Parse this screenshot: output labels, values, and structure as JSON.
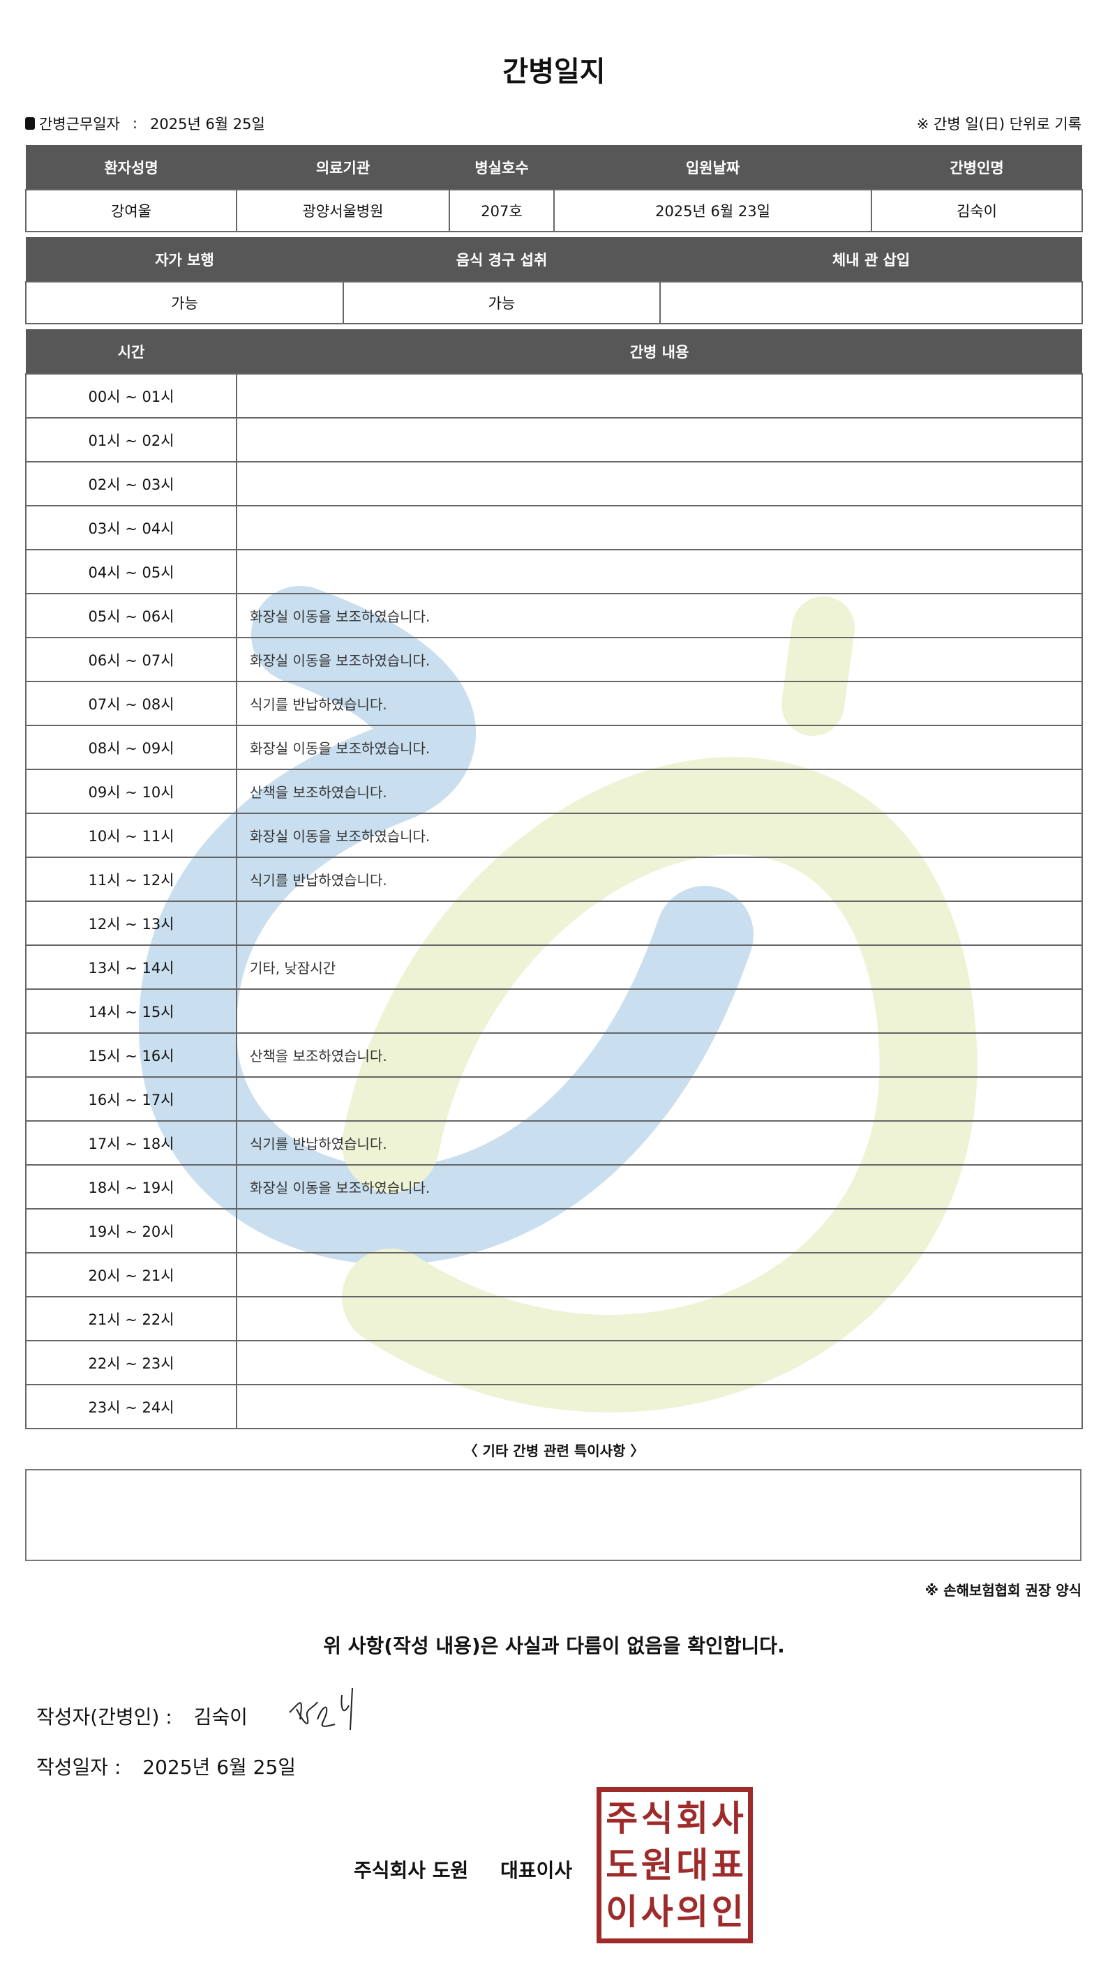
{
  "title": "간병일지",
  "work_date_label": "간병근무일자",
  "work_date_sep": ":",
  "work_date": "2025년 6월 25일",
  "record_note": "※ 간병 일(日) 단위로 기록",
  "patient_table": {
    "headers": [
      "환자성명",
      "의료기관",
      "병실호수",
      "입원날짜",
      "간병인명"
    ],
    "values": [
      "강여울",
      "광양서울병원",
      "207호",
      "2025년 6월 23일",
      "김숙이"
    ]
  },
  "status_table": {
    "headers": [
      "자가 보행",
      "음식 경구 섭취",
      "체내 관 삽입"
    ],
    "values": [
      "가능",
      "가능",
      ""
    ]
  },
  "log_table": {
    "headers": [
      "시간",
      "간병 내용"
    ],
    "rows": [
      {
        "time": "00시 ~ 01시",
        "content": ""
      },
      {
        "time": "01시 ~ 02시",
        "content": ""
      },
      {
        "time": "02시 ~ 03시",
        "content": ""
      },
      {
        "time": "03시 ~ 04시",
        "content": ""
      },
      {
        "time": "04시 ~ 05시",
        "content": ""
      },
      {
        "time": "05시 ~ 06시",
        "content": "화장실 이동을 보조하였습니다."
      },
      {
        "time": "06시 ~ 07시",
        "content": "화장실 이동을 보조하였습니다."
      },
      {
        "time": "07시 ~ 08시",
        "content": "식기를 반납하였습니다."
      },
      {
        "time": "08시 ~ 09시",
        "content": "화장실 이동을 보조하였습니다."
      },
      {
        "time": "09시 ~ 10시",
        "content": "산책을 보조하였습니다."
      },
      {
        "time": "10시 ~ 11시",
        "content": "화장실 이동을 보조하였습니다."
      },
      {
        "time": "11시 ~ 12시",
        "content": "식기를 반납하였습니다."
      },
      {
        "time": "12시 ~ 13시",
        "content": ""
      },
      {
        "time": "13시 ~ 14시",
        "content": "기타, 낮잠시간"
      },
      {
        "time": "14시 ~ 15시",
        "content": ""
      },
      {
        "time": "15시 ~ 16시",
        "content": "산책을 보조하였습니다."
      },
      {
        "time": "16시 ~ 17시",
        "content": ""
      },
      {
        "time": "17시 ~ 18시",
        "content": "식기를 반납하였습니다."
      },
      {
        "time": "18시 ~ 19시",
        "content": "화장실 이동을 보조하였습니다."
      },
      {
        "time": "19시 ~ 20시",
        "content": ""
      },
      {
        "time": "20시 ~ 21시",
        "content": ""
      },
      {
        "time": "21시 ~ 22시",
        "content": ""
      },
      {
        "time": "22시 ~ 23시",
        "content": ""
      },
      {
        "time": "23시 ~ 24시",
        "content": ""
      }
    ]
  },
  "special_notes_title": "〈 기타 간병 관련 특이사항 〉",
  "special_notes": "",
  "association_note": "※ 손해보험협회 권장 양식",
  "confirmation": "위 사항(작성 내용)은 사실과 다름이 없음을 확인합니다.",
  "writer_label": "작성자(간병인) :",
  "writer_name": "김숙이",
  "written_date_label": "작성일자 :",
  "written_date": "2025년 6월 25일",
  "company": "주식회사 도원",
  "ceo_title": "대표이사",
  "seal_text": [
    "주",
    "식",
    "회",
    "사",
    "도",
    "원",
    "대",
    "표",
    "이",
    "사",
    "의",
    "인"
  ],
  "colors": {
    "header_bg": "#575757",
    "seal": "#9e2a2a",
    "watermark_blue": "#c9dff0",
    "watermark_green": "#eef3d6"
  }
}
